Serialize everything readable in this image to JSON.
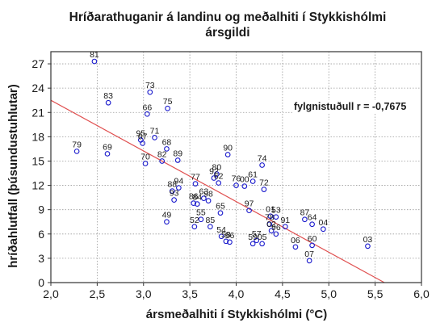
{
  "chart_data": {
    "type": "scatter",
    "title": [
      "Hríðarathuganir á landinu og meðalhiti í Stykkishólmi",
      "ársgildi"
    ],
    "xlabel": "ársmeðalhiti í Stykkishólmi (°C)",
    "ylabel": "hríðahlutfall (þúsundustuhlutar)",
    "xlim": [
      2.0,
      6.0
    ],
    "ylim": [
      0,
      28.5
    ],
    "x_ticks": [
      "2,0",
      "2,5",
      "3,0",
      "3,5",
      "4,0",
      "4,5",
      "5,0",
      "5,5",
      "6,0"
    ],
    "y_ticks": [
      "0",
      "3",
      "6",
      "9",
      "12",
      "15",
      "18",
      "21",
      "24",
      "27"
    ],
    "grid": "dotted",
    "annotation": "fylgnistuðull r = -0,7675",
    "regression_line": {
      "x": [
        2.0,
        5.6
      ],
      "y": [
        22.5,
        0
      ]
    },
    "colors": {
      "points": "#1a1acc",
      "trendline": "#e05050"
    },
    "points": [
      {
        "label": "81",
        "x": 2.47,
        "y": 27.3
      },
      {
        "label": "83",
        "x": 2.62,
        "y": 22.2
      },
      {
        "label": "79",
        "x": 2.28,
        "y": 16.2
      },
      {
        "label": "69",
        "x": 2.61,
        "y": 15.9
      },
      {
        "label": "73",
        "x": 3.07,
        "y": 23.5
      },
      {
        "label": "66",
        "x": 3.04,
        "y": 20.8
      },
      {
        "label": "75",
        "x": 3.26,
        "y": 21.5
      },
      {
        "label": "95",
        "x": 2.97,
        "y": 17.6
      },
      {
        "label": "67",
        "x": 2.99,
        "y": 17.2
      },
      {
        "label": "71",
        "x": 3.12,
        "y": 17.9
      },
      {
        "label": "68",
        "x": 3.25,
        "y": 16.5
      },
      {
        "label": "70",
        "x": 3.02,
        "y": 14.7
      },
      {
        "label": "82",
        "x": 3.2,
        "y": 15.0
      },
      {
        "label": "89",
        "x": 3.37,
        "y": 15.1
      },
      {
        "label": "88",
        "x": 3.31,
        "y": 11.3
      },
      {
        "label": "94",
        "x": 3.38,
        "y": 11.7
      },
      {
        "label": "93",
        "x": 3.33,
        "y": 10.2
      },
      {
        "label": "49",
        "x": 3.25,
        "y": 7.5
      },
      {
        "label": "77",
        "x": 3.56,
        "y": 12.2
      },
      {
        "label": "63",
        "x": 3.65,
        "y": 10.4
      },
      {
        "label": "98",
        "x": 3.7,
        "y": 10.1
      },
      {
        "label": "86",
        "x": 3.54,
        "y": 9.8
      },
      {
        "label": "84",
        "x": 3.58,
        "y": 9.7
      },
      {
        "label": "80",
        "x": 3.79,
        "y": 13.4
      },
      {
        "label": "92",
        "x": 3.76,
        "y": 12.9
      },
      {
        "label": "62",
        "x": 3.81,
        "y": 12.3
      },
      {
        "label": "90",
        "x": 3.91,
        "y": 15.8
      },
      {
        "label": "76",
        "x": 4.0,
        "y": 12.0
      },
      {
        "label": "61",
        "x": 4.18,
        "y": 12.5
      },
      {
        "label": "74",
        "x": 4.28,
        "y": 14.5
      },
      {
        "label": "72",
        "x": 4.3,
        "y": 11.5
      },
      {
        "label": "00",
        "x": 4.09,
        "y": 11.9
      },
      {
        "label": "65",
        "x": 3.83,
        "y": 8.6
      },
      {
        "label": "97",
        "x": 4.14,
        "y": 8.9
      },
      {
        "label": "55",
        "x": 3.62,
        "y": 7.8
      },
      {
        "label": "52",
        "x": 3.55,
        "y": 6.9
      },
      {
        "label": "85",
        "x": 3.72,
        "y": 6.9
      },
      {
        "label": "54",
        "x": 3.84,
        "y": 5.7
      },
      {
        "label": "58",
        "x": 3.89,
        "y": 5.1
      },
      {
        "label": "56",
        "x": 3.93,
        "y": 5.0
      },
      {
        "label": "57",
        "x": 4.22,
        "y": 5.2
      },
      {
        "label": "59",
        "x": 4.18,
        "y": 4.8
      },
      {
        "label": "05",
        "x": 4.28,
        "y": 4.8
      },
      {
        "label": "01",
        "x": 4.37,
        "y": 8.2
      },
      {
        "label": "53",
        "x": 4.43,
        "y": 8.1
      },
      {
        "label": "78",
        "x": 4.36,
        "y": 7.2
      },
      {
        "label": "02",
        "x": 4.38,
        "y": 6.4
      },
      {
        "label": "96",
        "x": 4.43,
        "y": 6.0
      },
      {
        "label": "91",
        "x": 4.53,
        "y": 6.9
      },
      {
        "label": "06",
        "x": 4.64,
        "y": 4.4
      },
      {
        "label": "87",
        "x": 4.74,
        "y": 7.8
      },
      {
        "label": "64",
        "x": 4.82,
        "y": 7.2
      },
      {
        "label": "04",
        "x": 4.94,
        "y": 6.6
      },
      {
        "label": "60",
        "x": 4.82,
        "y": 4.6
      },
      {
        "label": "07",
        "x": 4.79,
        "y": 2.7
      },
      {
        "label": "03",
        "x": 5.42,
        "y": 4.5
      }
    ]
  }
}
